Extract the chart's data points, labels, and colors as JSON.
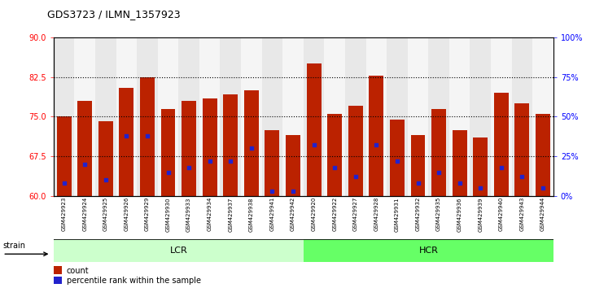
{
  "title": "GDS3723 / ILMN_1357923",
  "samples": [
    "GSM429923",
    "GSM429924",
    "GSM429925",
    "GSM429926",
    "GSM429929",
    "GSM429930",
    "GSM429933",
    "GSM429934",
    "GSM429937",
    "GSM429938",
    "GSM429941",
    "GSM429942",
    "GSM429920",
    "GSM429922",
    "GSM429927",
    "GSM429928",
    "GSM429931",
    "GSM429932",
    "GSM429935",
    "GSM429936",
    "GSM429939",
    "GSM429940",
    "GSM429943",
    "GSM429944"
  ],
  "counts": [
    75.0,
    78.0,
    74.2,
    80.5,
    82.5,
    76.5,
    78.0,
    78.5,
    79.2,
    80.0,
    72.5,
    71.5,
    85.0,
    75.5,
    77.0,
    82.8,
    74.5,
    71.5,
    76.5,
    72.5,
    71.0,
    79.5,
    77.5,
    75.5
  ],
  "percentile_ranks": [
    8,
    20,
    10,
    38,
    38,
    15,
    18,
    22,
    22,
    30,
    3,
    3,
    32,
    18,
    12,
    32,
    22,
    8,
    15,
    8,
    5,
    18,
    12,
    5
  ],
  "lcr_count": 12,
  "hcr_count": 12,
  "lcr_color": "#ccffcc",
  "hcr_color": "#66ff66",
  "bar_color": "#bb2200",
  "dot_color": "#2222cc",
  "ymin": 60,
  "ymax": 90,
  "yticks": [
    60,
    67.5,
    75,
    82.5,
    90
  ],
  "right_yticks": [
    0,
    25,
    50,
    75,
    100
  ],
  "right_yticklabels": [
    "0%",
    "25%",
    "50%",
    "75%",
    "100%"
  ],
  "dotted_lines": [
    67.5,
    75.0,
    82.5
  ],
  "legend_count_label": "count",
  "legend_pct_label": "percentile rank within the sample",
  "strain_label": "strain"
}
